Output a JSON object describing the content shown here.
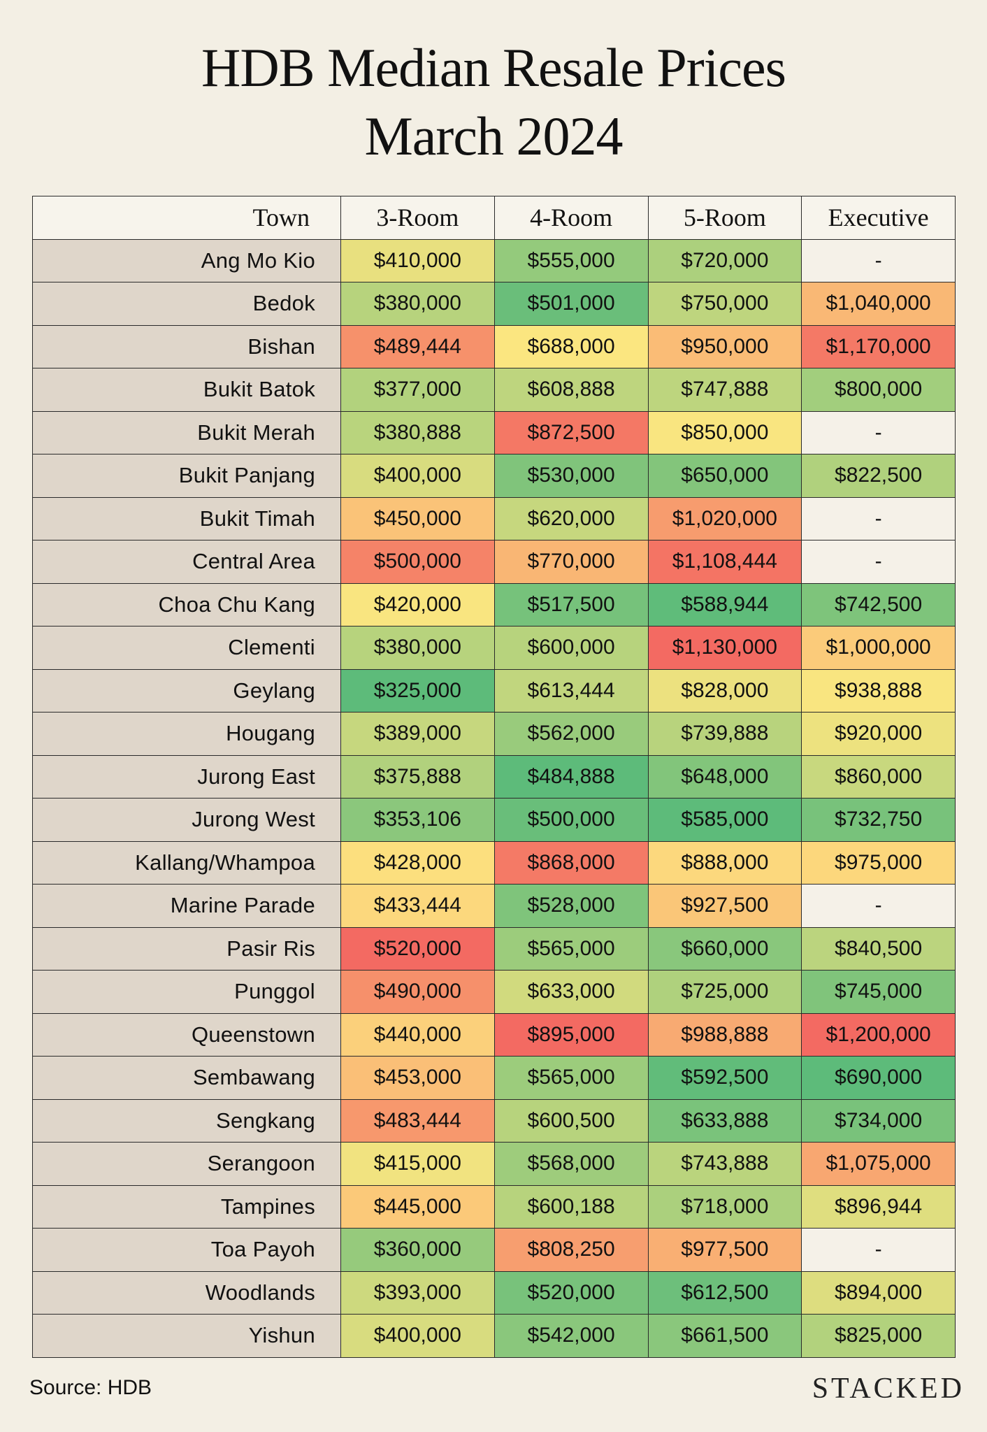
{
  "title_line1": "HDB Median Resale Prices",
  "title_line2": "March 2024",
  "source": "Source: HDB",
  "brand": "STACKED",
  "chart_data": {
    "type": "heatmap",
    "title": "HDB Median Resale Prices March 2024",
    "row_header": "Town",
    "columns": [
      "3-Room",
      "4-Room",
      "5-Room",
      "Executive"
    ],
    "missing_label": "-",
    "color_scale": {
      "low": "#5dbb7a",
      "mid": "#fde680",
      "high": "#f36a62"
    },
    "rows": [
      {
        "town": "Ang Mo Kio",
        "values": [
          410000,
          555000,
          720000,
          null
        ]
      },
      {
        "town": "Bedok",
        "values": [
          380000,
          501000,
          750000,
          1040000
        ]
      },
      {
        "town": "Bishan",
        "values": [
          489444,
          688000,
          950000,
          1170000
        ]
      },
      {
        "town": "Bukit Batok",
        "values": [
          377000,
          608888,
          747888,
          800000
        ]
      },
      {
        "town": "Bukit Merah",
        "values": [
          380888,
          872500,
          850000,
          null
        ]
      },
      {
        "town": "Bukit Panjang",
        "values": [
          400000,
          530000,
          650000,
          822500
        ]
      },
      {
        "town": "Bukit Timah",
        "values": [
          450000,
          620000,
          1020000,
          null
        ]
      },
      {
        "town": "Central Area",
        "values": [
          500000,
          770000,
          1108444,
          null
        ]
      },
      {
        "town": "Choa Chu Kang",
        "values": [
          420000,
          517500,
          588944,
          742500
        ]
      },
      {
        "town": "Clementi",
        "values": [
          380000,
          600000,
          1130000,
          1000000
        ]
      },
      {
        "town": "Geylang",
        "values": [
          325000,
          613444,
          828000,
          938888
        ]
      },
      {
        "town": "Hougang",
        "values": [
          389000,
          562000,
          739888,
          920000
        ]
      },
      {
        "town": "Jurong East",
        "values": [
          375888,
          484888,
          648000,
          860000
        ]
      },
      {
        "town": "Jurong West",
        "values": [
          353106,
          500000,
          585000,
          732750
        ]
      },
      {
        "town": "Kallang/Whampoa",
        "values": [
          428000,
          868000,
          888000,
          975000
        ]
      },
      {
        "town": "Marine Parade",
        "values": [
          433444,
          528000,
          927500,
          null
        ]
      },
      {
        "town": "Pasir Ris",
        "values": [
          520000,
          565000,
          660000,
          840500
        ]
      },
      {
        "town": "Punggol",
        "values": [
          490000,
          633000,
          725000,
          745000
        ]
      },
      {
        "town": "Queenstown",
        "values": [
          440000,
          895000,
          988888,
          1200000
        ]
      },
      {
        "town": "Sembawang",
        "values": [
          453000,
          565000,
          592500,
          690000
        ]
      },
      {
        "town": "Sengkang",
        "values": [
          483444,
          600500,
          633888,
          734000
        ]
      },
      {
        "town": "Serangoon",
        "values": [
          415000,
          568000,
          743888,
          1075000
        ]
      },
      {
        "town": "Tampines",
        "values": [
          445000,
          600188,
          718000,
          896944
        ]
      },
      {
        "town": "Toa Payoh",
        "values": [
          360000,
          808250,
          977500,
          null
        ]
      },
      {
        "town": "Woodlands",
        "values": [
          393000,
          520000,
          612500,
          894000
        ]
      },
      {
        "town": "Yishun",
        "values": [
          400000,
          542000,
          661500,
          825000
        ]
      }
    ]
  }
}
